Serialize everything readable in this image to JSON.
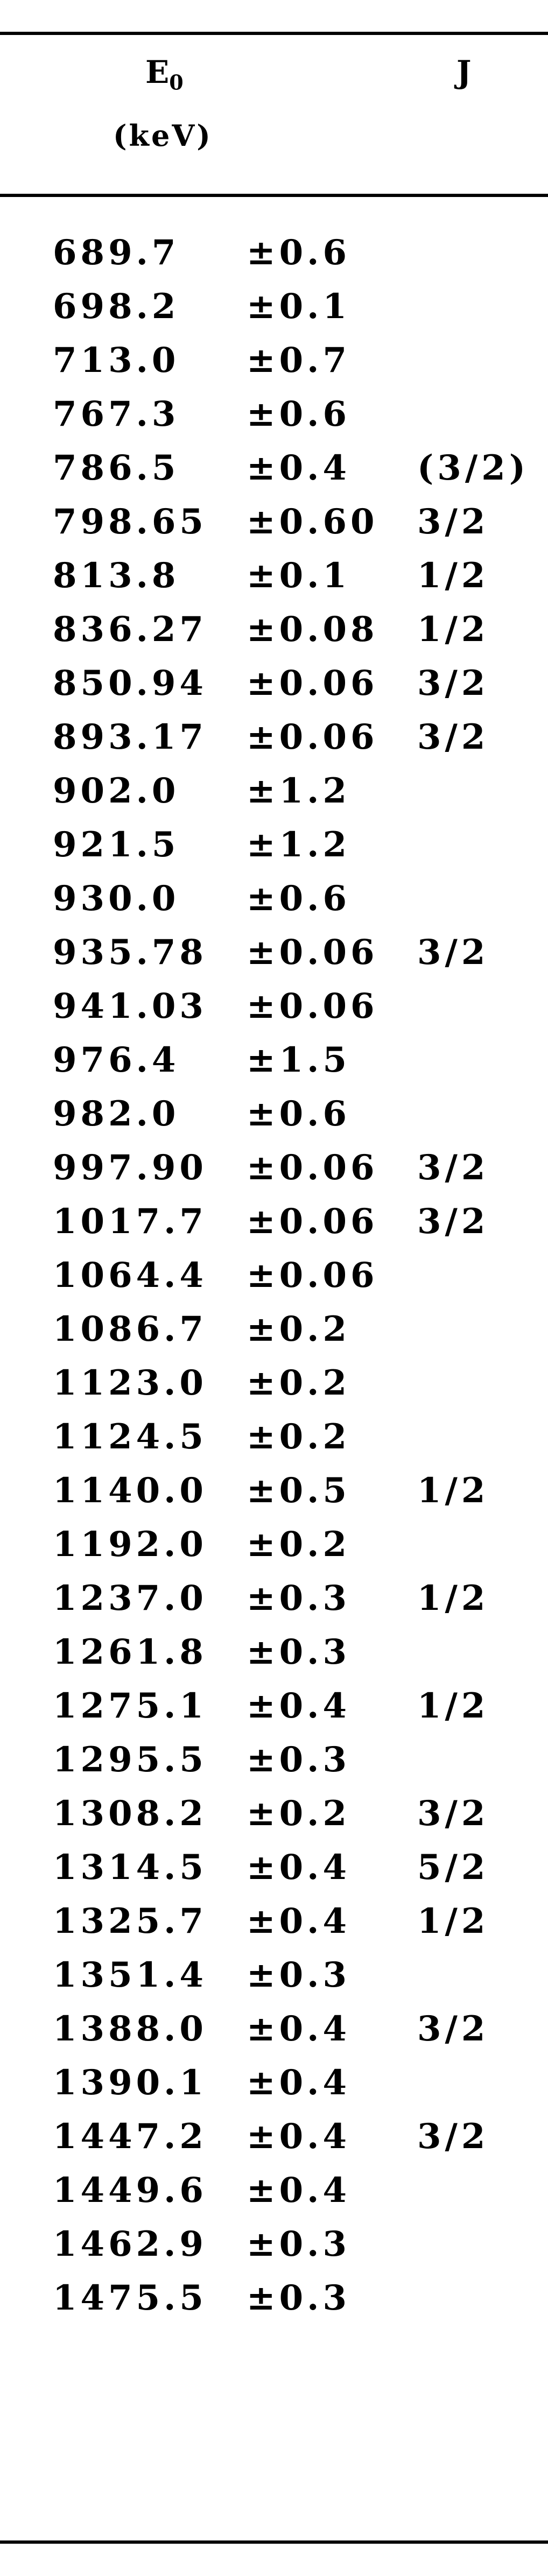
{
  "table": {
    "header": {
      "energy_symbol": "E",
      "energy_subscript": "0",
      "energy_unit": "(keV)",
      "spin": "J"
    },
    "rows": [
      {
        "energy": "689.7",
        "uncertainty": "±0.6",
        "j": ""
      },
      {
        "energy": "698.2",
        "uncertainty": "±0.1",
        "j": ""
      },
      {
        "energy": "713.0",
        "uncertainty": "±0.7",
        "j": ""
      },
      {
        "energy": "767.3",
        "uncertainty": "±0.6",
        "j": ""
      },
      {
        "energy": "786.5",
        "uncertainty": "±0.4",
        "j": "(3/2)"
      },
      {
        "energy": "798.65",
        "uncertainty": "±0.60",
        "j": "3/2"
      },
      {
        "energy": "813.8",
        "uncertainty": "±0.1",
        "j": "1/2"
      },
      {
        "energy": "836.27",
        "uncertainty": "±0.08",
        "j": "1/2"
      },
      {
        "energy": "850.94",
        "uncertainty": "±0.06",
        "j": "3/2"
      },
      {
        "energy": "893.17",
        "uncertainty": "±0.06",
        "j": "3/2"
      },
      {
        "energy": "902.0",
        "uncertainty": "±1.2",
        "j": ""
      },
      {
        "energy": "921.5",
        "uncertainty": "±1.2",
        "j": ""
      },
      {
        "energy": "930.0",
        "uncertainty": "±0.6",
        "j": ""
      },
      {
        "energy": "935.78",
        "uncertainty": "±0.06",
        "j": "3/2"
      },
      {
        "energy": "941.03",
        "uncertainty": "±0.06",
        "j": ""
      },
      {
        "energy": "976.4",
        "uncertainty": "±1.5",
        "j": ""
      },
      {
        "energy": "982.0",
        "uncertainty": "±0.6",
        "j": ""
      },
      {
        "energy": "997.90",
        "uncertainty": "±0.06",
        "j": "3/2"
      },
      {
        "energy": "1017.7",
        "uncertainty": "±0.06",
        "j": "3/2"
      },
      {
        "energy": "1064.4",
        "uncertainty": "±0.06",
        "j": ""
      },
      {
        "energy": "1086.7",
        "uncertainty": "±0.2",
        "j": ""
      },
      {
        "energy": "1123.0",
        "uncertainty": "±0.2",
        "j": ""
      },
      {
        "energy": "1124.5",
        "uncertainty": "±0.2",
        "j": ""
      },
      {
        "energy": "1140.0",
        "uncertainty": "±0.5",
        "j": "1/2"
      },
      {
        "energy": "1192.0",
        "uncertainty": "±0.2",
        "j": ""
      },
      {
        "energy": "1237.0",
        "uncertainty": "±0.3",
        "j": "1/2"
      },
      {
        "energy": "1261.8",
        "uncertainty": "±0.3",
        "j": ""
      },
      {
        "energy": "1275.1",
        "uncertainty": "±0.4",
        "j": "1/2"
      },
      {
        "energy": "1295.5",
        "uncertainty": "±0.3",
        "j": ""
      },
      {
        "energy": "1308.2",
        "uncertainty": "±0.2",
        "j": "3/2"
      },
      {
        "energy": "1314.5",
        "uncertainty": "±0.4",
        "j": "5/2"
      },
      {
        "energy": "1325.7",
        "uncertainty": "±0.4",
        "j": "1/2"
      },
      {
        "energy": "1351.4",
        "uncertainty": "±0.3",
        "j": ""
      },
      {
        "energy": "1388.0",
        "uncertainty": "±0.4",
        "j": "3/2"
      },
      {
        "energy": "1390.1",
        "uncertainty": "±0.4",
        "j": ""
      },
      {
        "energy": "1447.2",
        "uncertainty": "±0.4",
        "j": "3/2"
      },
      {
        "energy": "1449.6",
        "uncertainty": "±0.4",
        "j": ""
      },
      {
        "energy": "1462.9",
        "uncertainty": "±0.3",
        "j": ""
      },
      {
        "energy": "1475.5",
        "uncertainty": "±0.3",
        "j": ""
      }
    ]
  }
}
